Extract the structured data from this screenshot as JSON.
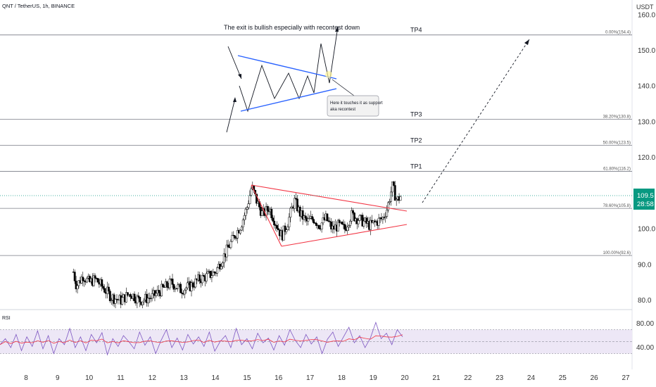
{
  "header": {
    "symbol": "QNT / TetherUS, 1h, BINANCE",
    "currency": "USDT"
  },
  "annotations": {
    "main_text": "The exit is bullish especially with recontest down",
    "callout_line1": "Here it touches it as support",
    "callout_line2": "aka recontest"
  },
  "price_tag": {
    "price": "109.5",
    "countdown": "28:58",
    "color": "#089981"
  },
  "colors": {
    "up_candle": "#ffffff",
    "down_candle": "#000000",
    "triangle_red": "#f23645",
    "triangle_blue": "#2962ff",
    "rsi_line": "#7e57c2",
    "rsi_ma": "#f23645",
    "rsi_band": "#ede7f6"
  },
  "chart_data": {
    "type": "candlestick",
    "y_axis": {
      "ticks": [
        "160.0",
        "150.0",
        "140.0",
        "130.0",
        "120.0",
        "110.0",
        "100.0",
        "90.0",
        "80.0"
      ],
      "ylim": [
        78,
        162
      ]
    },
    "x_axis": {
      "ticks": [
        "8",
        "9",
        "10",
        "11",
        "12",
        "13",
        "14",
        "15",
        "16",
        "17",
        "18",
        "19",
        "20",
        "21",
        "22",
        "23",
        "24",
        "25",
        "26",
        "27"
      ]
    },
    "fib_levels": [
      {
        "tp": "TP4",
        "label": "0.00%(154.4)",
        "price": 154.4
      },
      {
        "tp": "TP3",
        "label": "38.20%(130.8)",
        "price": 130.8
      },
      {
        "tp": "TP2",
        "label": "50.00%(123.5)",
        "price": 123.5
      },
      {
        "tp": "TP1",
        "label": "61.80%(116.2)",
        "price": 116.2
      },
      {
        "tp": "",
        "label": "78.60%(105.8)",
        "price": 105.8
      },
      {
        "tp": "",
        "label": "100.00%(92.6)",
        "price": 92.6
      }
    ],
    "last_price": 109.5,
    "close_path": [
      [
        9.5,
        88
      ],
      [
        9.6,
        84
      ],
      [
        9.8,
        87
      ],
      [
        10.0,
        85
      ],
      [
        10.2,
        86
      ],
      [
        10.5,
        83
      ],
      [
        10.7,
        81
      ],
      [
        11.0,
        80
      ],
      [
        11.3,
        82
      ],
      [
        11.6,
        80
      ],
      [
        12.0,
        81
      ],
      [
        12.3,
        83
      ],
      [
        12.6,
        85
      ],
      [
        12.9,
        83
      ],
      [
        13.2,
        84
      ],
      [
        13.5,
        86
      ],
      [
        13.8,
        87
      ],
      [
        14.0,
        88
      ],
      [
        14.3,
        93
      ],
      [
        14.6,
        98
      ],
      [
        14.8,
        101
      ],
      [
        15.0,
        106
      ],
      [
        15.15,
        112
      ],
      [
        15.3,
        108
      ],
      [
        15.5,
        104
      ],
      [
        15.7,
        106
      ],
      [
        15.9,
        102
      ],
      [
        16.1,
        98
      ],
      [
        16.3,
        102
      ],
      [
        16.5,
        108
      ],
      [
        16.7,
        104
      ],
      [
        16.9,
        102
      ],
      [
        17.1,
        103
      ],
      [
        17.3,
        101
      ],
      [
        17.5,
        103
      ],
      [
        17.7,
        100
      ],
      [
        17.9,
        101
      ],
      [
        18.1,
        100
      ],
      [
        18.3,
        104
      ],
      [
        18.5,
        103
      ],
      [
        18.7,
        102
      ],
      [
        18.9,
        101
      ],
      [
        19.1,
        102
      ],
      [
        19.3,
        103
      ],
      [
        19.45,
        106
      ],
      [
        19.6,
        112
      ],
      [
        19.75,
        108
      ],
      [
        19.9,
        109.5
      ]
    ],
    "rsi": {
      "label": "RSI",
      "ticks": [
        "80.00",
        "40.00"
      ],
      "levels": {
        "upper": 70,
        "lower": 30,
        "mid": 50
      },
      "values": [
        45,
        55,
        40,
        62,
        35,
        58,
        42,
        68,
        38,
        60,
        30,
        55,
        45,
        72,
        40,
        58,
        35,
        62,
        48,
        65,
        28,
        55,
        42,
        60,
        50,
        38,
        66,
        44,
        58,
        30,
        52,
        70,
        40,
        56,
        36,
        62,
        46,
        58,
        42,
        66,
        34,
        50,
        60,
        40,
        72,
        45,
        55,
        38,
        64,
        48,
        56,
        36,
        60,
        44,
        70,
        52,
        40,
        62,
        46,
        58,
        30,
        54,
        66,
        42,
        58,
        74,
        48,
        60,
        40,
        56,
        82,
        55,
        64,
        45,
        70,
        58
      ]
    }
  }
}
